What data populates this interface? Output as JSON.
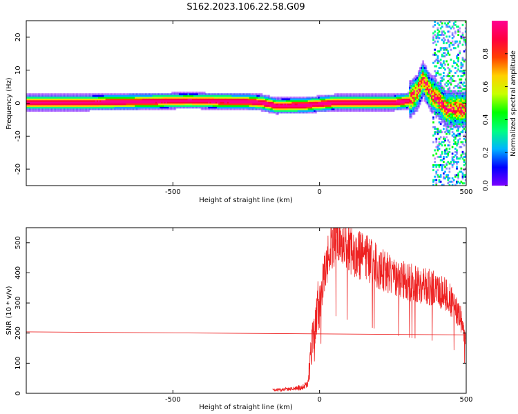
{
  "title": "S162.2023.106.22.58.G09",
  "colors": {
    "snr_trace": "#ee2222",
    "axis": "#000000",
    "colormap": [
      "#7a00ff",
      "#0000ff",
      "#00b4ff",
      "#00ff80",
      "#00ff00",
      "#c8ff00",
      "#ffd000",
      "#ff4000",
      "#ff0040",
      "#ff0090"
    ]
  },
  "chart_data": [
    {
      "type": "heatmap",
      "xlabel": "Height of straight line (km)",
      "ylabel": "Frequency (Hz)",
      "xlim": [
        -1000,
        500
      ],
      "ylim": [
        -25,
        25
      ],
      "x_ticks": [
        -500,
        0,
        500
      ],
      "y_ticks": [
        -20,
        -10,
        0,
        10,
        20
      ],
      "x_tick_labels": [
        "-500",
        "0",
        "500"
      ],
      "y_tick_labels": [
        "-20",
        "-10",
        "0",
        "10",
        "20"
      ],
      "ridge": [
        {
          "x": -1000,
          "f": 0.0
        },
        {
          "x": -800,
          "f": 0.0
        },
        {
          "x": -600,
          "f": 0.3
        },
        {
          "x": -450,
          "f": 0.6
        },
        {
          "x": -350,
          "f": 0.4
        },
        {
          "x": -250,
          "f": 0.3
        },
        {
          "x": -200,
          "f": 0.0
        },
        {
          "x": -150,
          "f": -1.0
        },
        {
          "x": -50,
          "f": -0.8
        },
        {
          "x": 50,
          "f": 0.0
        },
        {
          "x": 150,
          "f": 0.0
        },
        {
          "x": 250,
          "f": 0.0
        },
        {
          "x": 300,
          "f": 0.5
        },
        {
          "x": 330,
          "f": 3.0
        },
        {
          "x": 350,
          "f": 7.0
        },
        {
          "x": 375,
          "f": 3.0
        },
        {
          "x": 400,
          "f": 1.0
        },
        {
          "x": 430,
          "f": -2.0
        }
      ],
      "colorbar": {
        "label": "Normalized spectral amplitude",
        "range": [
          0,
          1
        ],
        "ticks": [
          0.0,
          0.2,
          0.4,
          0.6,
          0.8
        ],
        "tick_labels": [
          "0.0",
          "0.2",
          "0.4",
          "0.6",
          "0.8"
        ]
      }
    },
    {
      "type": "line",
      "xlabel": "Height of straight line (km)",
      "ylabel": "SNR (10 * v/v)",
      "xlim": [
        -1000,
        500
      ],
      "ylim": [
        0,
        550
      ],
      "x_ticks": [
        -500,
        0,
        500
      ],
      "y_ticks": [
        0,
        100,
        200,
        300,
        400,
        500
      ],
      "x_tick_labels": [
        "-500",
        "0",
        "500"
      ],
      "y_tick_labels": [
        "0",
        "100",
        "200",
        "300",
        "400",
        "500"
      ],
      "reference_line": {
        "x": [
          -1000,
          500
        ],
        "y": [
          204,
          194
        ]
      },
      "snr_envelope": {
        "x": [
          -160,
          -100,
          -60,
          -40,
          -35,
          -20,
          -10,
          0,
          20,
          40,
          60,
          80,
          100,
          130,
          160,
          200,
          250,
          300,
          350,
          400,
          440,
          480,
          500
        ],
        "y": [
          10,
          15,
          20,
          30,
          80,
          200,
          250,
          300,
          420,
          480,
          520,
          510,
          480,
          460,
          450,
          420,
          390,
          370,
          360,
          345,
          320,
          250,
          180
        ]
      }
    }
  ]
}
